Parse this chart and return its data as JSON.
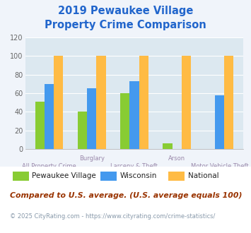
{
  "title_line1": "2019 Pewaukee Village",
  "title_line2": "Property Crime Comparison",
  "title_color": "#2266cc",
  "categories": [
    "All Property Crime",
    "Burglary",
    "Larceny & Theft",
    "Arson",
    "Motor Vehicle Theft"
  ],
  "series": [
    {
      "label": "Pewaukee Village",
      "color": "#88cc33",
      "values": [
        51,
        40,
        60,
        6,
        0
      ]
    },
    {
      "label": "Wisconsin",
      "color": "#4499ee",
      "values": [
        70,
        65,
        73,
        0,
        58
      ]
    },
    {
      "label": "National",
      "color": "#ffbb44",
      "values": [
        100,
        100,
        100,
        100,
        100
      ]
    }
  ],
  "ylim": [
    0,
    120
  ],
  "yticks": [
    0,
    20,
    40,
    60,
    80,
    100,
    120
  ],
  "bar_width": 0.22,
  "background_color": "#f0f4fa",
  "plot_bg_color": "#dce8f0",
  "grid_color": "#ffffff",
  "footnote1": "Compared to U.S. average. (U.S. average equals 100)",
  "footnote2": "© 2025 CityRating.com - https://www.cityrating.com/crime-statistics/",
  "footnote1_color": "#993300",
  "footnote2_color": "#8899aa"
}
